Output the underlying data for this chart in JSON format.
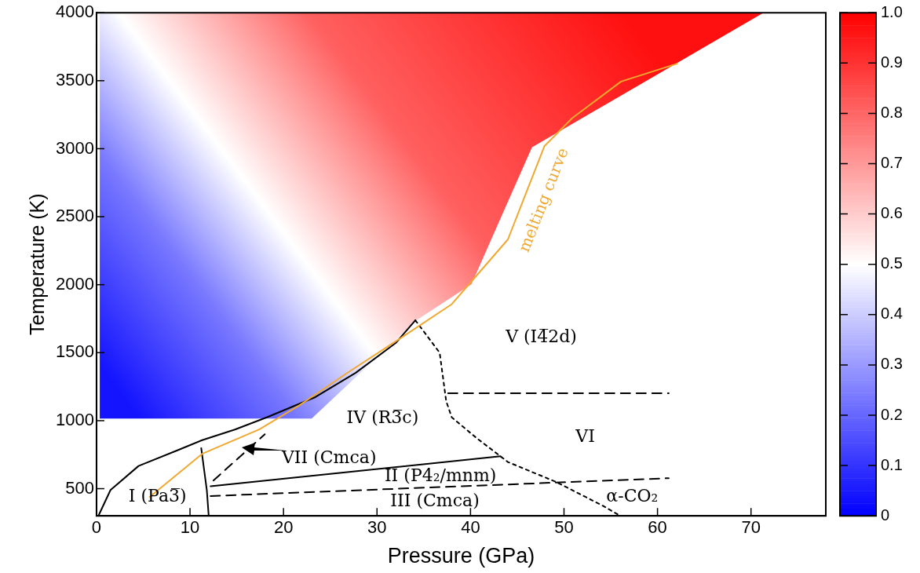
{
  "chart_data": {
    "type": "line",
    "xlabel": "Pressure (GPa)",
    "ylabel": "Temperature (K)",
    "xlim": [
      0,
      78
    ],
    "xticks": [
      0,
      10,
      20,
      30,
      40,
      50,
      60,
      70
    ],
    "ylim": [
      300,
      4000
    ],
    "yticks": [
      500,
      1000,
      1500,
      2000,
      2500,
      3000,
      3500,
      4000
    ],
    "clim": [
      0,
      1
    ],
    "cticks": [
      0,
      0.1,
      0.2,
      0.3,
      0.4,
      0.5,
      0.6,
      0.7,
      0.8,
      0.9,
      {
        "value": 1,
        "label": "1.0"
      }
    ],
    "grid": false,
    "legend": false,
    "marker": "none",
    "series": [
      {
        "name": "melting curve",
        "color": "#f0a830",
        "line_style": "solid",
        "x": [
          5.7,
          11.3,
          17.4,
          21.7,
          26.8,
          32.8,
          38,
          41,
          44,
          47.9,
          50.9,
          56.1,
          62.1
        ],
        "values": [
          440,
          756,
          935,
          1113,
          1350,
          1619,
          1857,
          2095,
          2333,
          3018,
          3226,
          3494,
          3625
        ]
      },
      {
        "color": "#000000",
        "line_style": "solid",
        "x": [
          0.2,
          1.5,
          4.5,
          8.8,
          11.3,
          14.8,
          18.2,
          23.4,
          27.7,
          32,
          34.1
        ],
        "values": [
          300,
          490,
          667,
          786,
          857,
          935,
          1024,
          1173,
          1351,
          1571,
          1738
        ]
      },
      {
        "color": "#000000",
        "line_style": "solid",
        "x": [
          11.2,
          11.8,
          12
        ],
        "values": [
          798,
          488,
          300
        ]
      },
      {
        "color": "#000000",
        "line_style": "dotted",
        "x": [
          34.1,
          36.7,
          37.4,
          38,
          40.6,
          44,
          49.2,
          54.3,
          56
        ],
        "values": [
          1738,
          1500,
          1143,
          1024,
          875,
          696,
          548,
          369,
          300
        ]
      },
      {
        "color": "#000000",
        "line_style": "solid",
        "x": [
          12.2,
          43.2
        ],
        "values": [
          518,
          738
        ]
      },
      {
        "color": "#000000",
        "line_style": "dashed",
        "x": [
          12.2,
          61.2
        ],
        "values": [
          446,
          577
        ]
      },
      {
        "color": "#000000",
        "line_style": "dashed",
        "x": [
          37.6,
          61.2
        ],
        "values": [
          1202,
          1202
        ]
      },
      {
        "color": "#000000",
        "line_style": "dashed",
        "x": [
          12.5,
          18
        ],
        "values": [
          560,
          900
        ]
      }
    ],
    "annotations": [
      "IV (R3̅c)",
      "VII (Cmca)",
      "II (P4₂/mnm)",
      "III (Cmca)",
      "I (Pa3̅)",
      "V (I4̅2d)",
      "VI",
      "α-CO₂"
    ]
  }
}
